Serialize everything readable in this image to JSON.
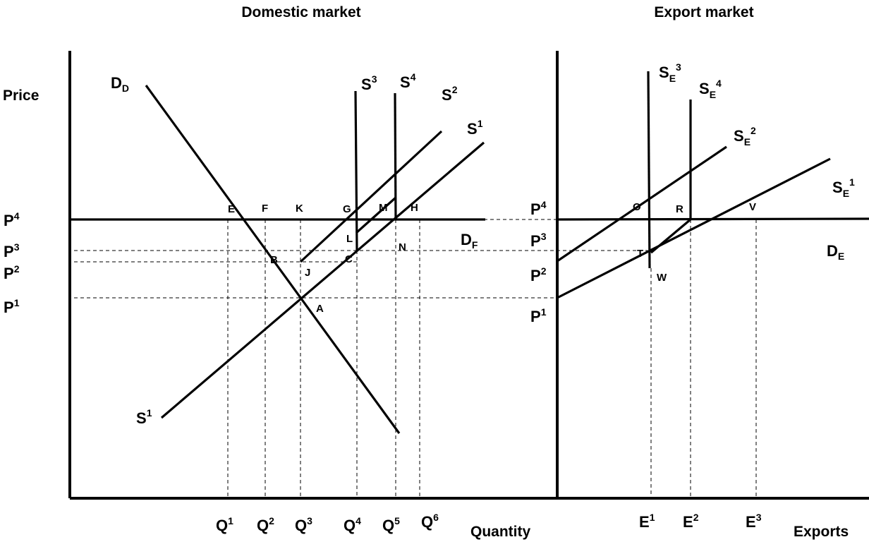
{
  "titles": {
    "domestic": "Domestic market",
    "export": "Export market"
  },
  "axes": {
    "domestic_y": "Price",
    "domestic_x": "Quantity",
    "export_x": "Exports"
  },
  "curves": {
    "dd": {
      "main": "D",
      "sub": "D"
    },
    "s1_top": {
      "main": "S",
      "sup": "1"
    },
    "s1_bottom": {
      "main": "S",
      "sup": "1"
    },
    "s2": {
      "main": "S",
      "sup": "2"
    },
    "s3": {
      "main": "S",
      "sup": "3"
    },
    "s4": {
      "main": "S",
      "sup": "4"
    },
    "df": {
      "main": "D",
      "sub": "F"
    },
    "de": {
      "main": "D",
      "sub": "E"
    },
    "se1": {
      "main": "S",
      "sub": "E",
      "sup": "1"
    },
    "se2": {
      "main": "S",
      "sub": "E",
      "sup": "2"
    },
    "se3": {
      "main": "S",
      "sub": "E",
      "sup": "3"
    },
    "se4": {
      "main": "S",
      "sub": "E",
      "sup": "4"
    }
  },
  "price_labels": {
    "domestic": [
      {
        "main": "P",
        "sup": "4"
      },
      {
        "main": "P",
        "sup": "3"
      },
      {
        "main": "P",
        "sup": "2"
      },
      {
        "main": "P",
        "sup": "1"
      }
    ],
    "export": [
      {
        "main": "P",
        "sup": "4"
      },
      {
        "main": "P",
        "sup": "3"
      },
      {
        "main": "P",
        "sup": "2"
      },
      {
        "main": "P",
        "sup": "1"
      }
    ]
  },
  "quantity_labels": [
    {
      "main": "Q",
      "sup": "1"
    },
    {
      "main": "Q",
      "sup": "2"
    },
    {
      "main": "Q",
      "sup": "3"
    },
    {
      "main": "Q",
      "sup": "4"
    },
    {
      "main": "Q",
      "sup": "5"
    },
    {
      "main": "Q",
      "sup": "6"
    }
  ],
  "export_labels": [
    {
      "main": "E",
      "sup": "1"
    },
    {
      "main": "E",
      "sup": "2"
    },
    {
      "main": "E",
      "sup": "3"
    }
  ],
  "points": {
    "E": "E",
    "F": "F",
    "K": "K",
    "G": "G",
    "M": "M",
    "H": "H",
    "L": "L",
    "N": "N",
    "B": "B",
    "C": "C",
    "J": "J",
    "A": "A",
    "O": "O",
    "R": "R",
    "V": "V",
    "T": "T",
    "W": "W"
  }
}
